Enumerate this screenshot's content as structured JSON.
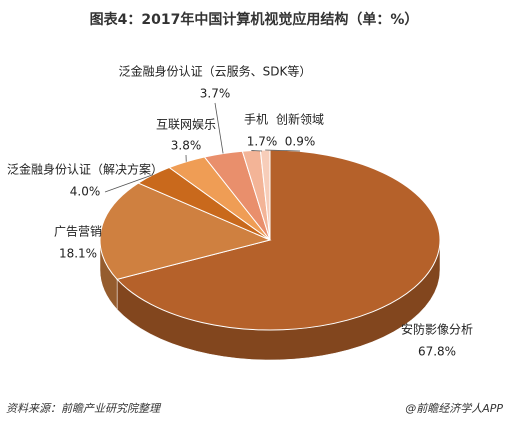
{
  "chart_data": {
    "type": "pie3d",
    "title": "图表4：2017年中国计算机视觉应用结构（单：%）",
    "categories": [
      "安防影像分析",
      "广告营销",
      "泛金融身份认证（解决方案）",
      "互联网娱乐",
      "泛金融身份认证（云服务、SDK等）",
      "手机",
      "创新领域"
    ],
    "values": [
      67.8,
      18.1,
      4.0,
      3.8,
      3.7,
      1.7,
      0.9
    ],
    "value_labels": [
      "67.8%",
      "18.1%",
      "4.0%",
      "3.8%",
      "3.7%",
      "1.7%",
      "0.9%"
    ],
    "colors": [
      "#b5612a",
      "#cf8040",
      "#c9691c",
      "#ef9d55",
      "#e98f6c",
      "#f3b497",
      "#f7cdb9"
    ],
    "source": "资料来源：前瞻产业研究院整理",
    "credit": "@前瞻经济学人APP"
  }
}
